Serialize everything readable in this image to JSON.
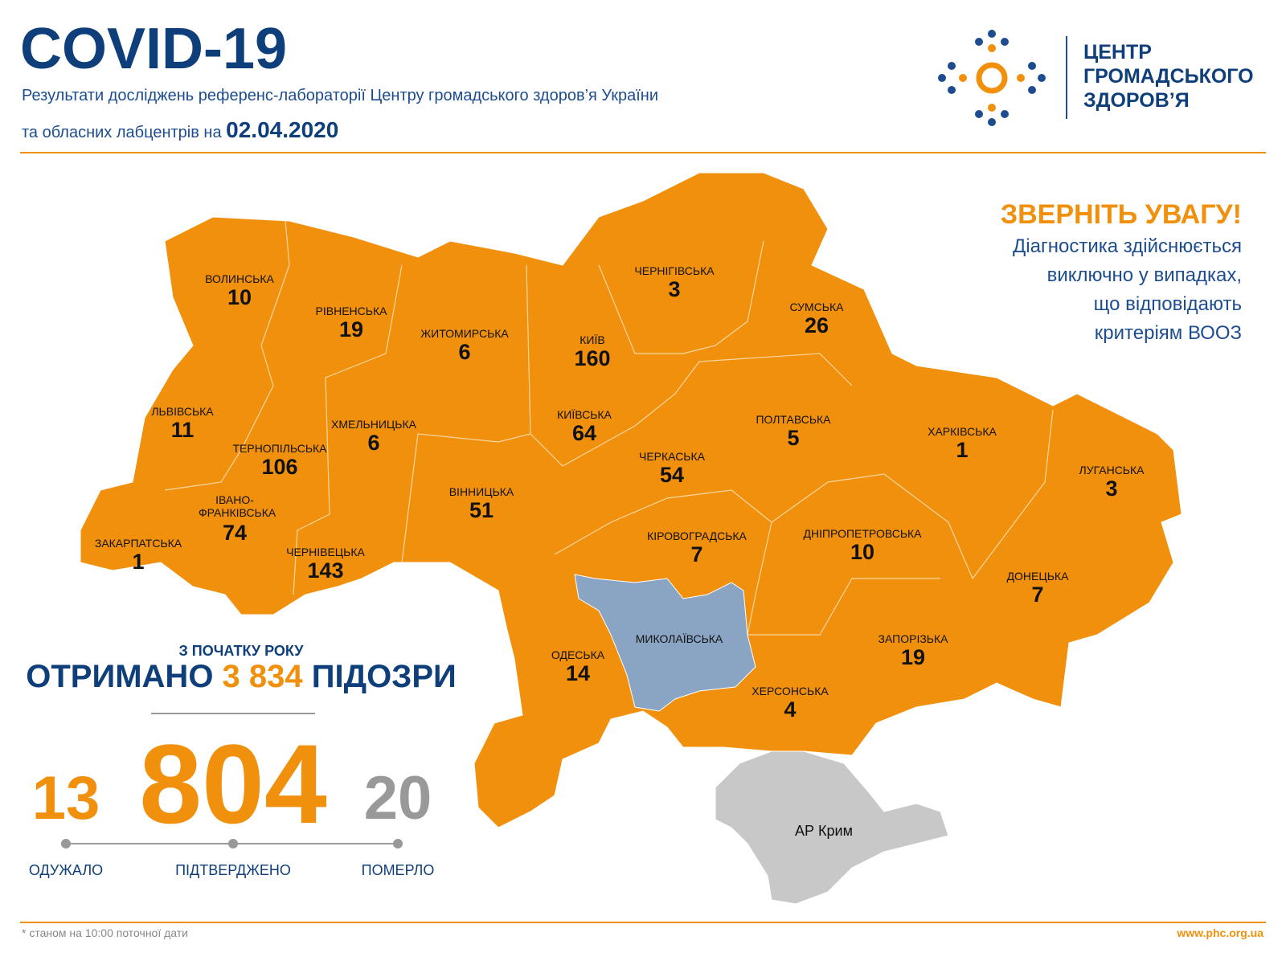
{
  "header": {
    "title": "COVID-19",
    "subtitle_line1": "Результати досліджень референс-лабораторії Центру громадського здоров’я України",
    "subtitle_line2": "та обласних лабцентрів на",
    "date": "02.04.2020"
  },
  "logo": {
    "lines": [
      "ЦЕНТР",
      "ГРОМАДСЬКОГО",
      "ЗДОРОВ’Я"
    ]
  },
  "notice": {
    "title": "ЗВЕРНІТЬ УВАГУ!",
    "lines": [
      "Діагностика здійснюється",
      "виключно у випадках,",
      "що відповідають",
      "критеріям ВООЗ"
    ]
  },
  "regions": [
    {
      "name": "ВОЛИНСЬКА",
      "value": 10
    },
    {
      "name": "РІВНЕНСЬКА",
      "value": 19
    },
    {
      "name": "ЖИТОМИРСЬКА",
      "value": 6
    },
    {
      "name": "КИЇВ",
      "value": 160
    },
    {
      "name": "ЧЕРНІГІВСЬКА",
      "value": 3
    },
    {
      "name": "СУМСЬКА",
      "value": 26
    },
    {
      "name": "ЛЬВІВСЬКА",
      "value": 11
    },
    {
      "name": "ТЕРНОПІЛЬСЬКА",
      "value": 106
    },
    {
      "name": "ХМЕЛЬНИЦЬКА",
      "value": 6
    },
    {
      "name": "КИЇВСЬКА",
      "value": 64
    },
    {
      "name": "ЧЕРКАСЬКА",
      "value": 54
    },
    {
      "name": "ПОЛТАВСЬКА",
      "value": 5
    },
    {
      "name": "ХАРКІВСЬКА",
      "value": 1
    },
    {
      "name": "ЛУГАНСЬКА",
      "value": 3
    },
    {
      "name": "ІВАНО-ФРАНКІВСЬКА",
      "value": 74
    },
    {
      "name": "ЗАКАРПАТСЬКА",
      "value": 1
    },
    {
      "name": "ЧЕРНІВЕЦЬКА",
      "value": 143
    },
    {
      "name": "ВІННИЦЬКА",
      "value": 51
    },
    {
      "name": "КІРОВОГРАДСЬКА",
      "value": 7
    },
    {
      "name": "ДНІПРОПЕТРОВСЬКА",
      "value": 10
    },
    {
      "name": "ДОНЕЦЬКА",
      "value": 7
    },
    {
      "name": "ОДЕСЬКА",
      "value": 14
    },
    {
      "name": "МИКОЛАЇВСЬКА"
    },
    {
      "name": "ЗАПОРІЗЬКА",
      "value": 19
    },
    {
      "name": "ХЕРСОНСЬКА",
      "value": 4
    }
  ],
  "crimea": "АР Крим",
  "summary": {
    "caption": "З ПОЧАТКУ РОКУ",
    "received_label": "ОТРИМАНО",
    "suspicions": "3 834",
    "suspicions_label": "ПІДОЗРИ",
    "recovered": 13,
    "confirmed": 804,
    "died": 20,
    "recovered_label": "ОДУЖАЛО",
    "confirmed_label": "ПІДТВЕРДЖЕНО",
    "died_label": "ПОМЕРЛО"
  },
  "footer": {
    "note": "* станом на 10:00 поточної дати",
    "url": "www.phc.org.ua"
  }
}
